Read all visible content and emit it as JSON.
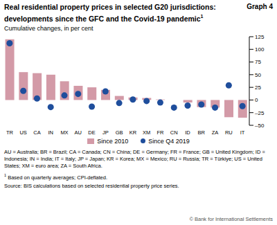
{
  "chart_data": {
    "type": "bar",
    "title": "Real residential property prices in selected G20 jurisdictions: developments since the GFC and the Covid-19 pandemic",
    "title_footnote_mark": "1",
    "graph_label": "Graph 4",
    "subtitle": "Cumulative changes, in per cent",
    "categories": [
      "TR",
      "US",
      "CA",
      "IN",
      "MX",
      "AU",
      "DE",
      "JP",
      "GB",
      "KR",
      "XM",
      "FR",
      "CN",
      "ID",
      "BR",
      "ZA",
      "RU",
      "IT"
    ],
    "series": [
      {
        "name": "Since 2010",
        "type": "bar",
        "color": "#d39aa7",
        "values": [
          120,
          55,
          53,
          50,
          37,
          28,
          25,
          20,
          8,
          5,
          4,
          1,
          0,
          -5,
          -14,
          -15,
          -34,
          -35
        ]
      },
      {
        "name": "Since Q4 2019",
        "type": "scatter",
        "color": "#1f4e9c",
        "marker": "circle",
        "values": [
          112,
          18,
          3,
          -14,
          9,
          12,
          -13,
          17,
          -6,
          1,
          -2,
          -5,
          -15,
          -11,
          -9,
          -15,
          29,
          -12
        ]
      }
    ],
    "ylim": [
      -50,
      125
    ],
    "yticks": [
      {
        "value": -50,
        "label": "–50"
      },
      {
        "value": -25,
        "label": "–25"
      },
      0,
      25,
      50,
      75,
      100,
      125
    ],
    "grid": false,
    "legend": "bottom",
    "abbreviations": "AU = Australia; BR = Brazil; CA = Canada; CN = China; DE = Germany; FR = France; GB = United Kingdom; ID = Indonesia; IN = India; IT = Italy; JP = Japan; KR = Korea; MX = Mexico; RU = Russia; TR = Türkiye; US = United States; XM = euro area; ZA = South Africa.",
    "footnotes": [
      {
        "mark": "1",
        "text": "Based on quarterly averages; CPI-deflated."
      }
    ],
    "source": "Source: BIS calculations based on selected residential property price series.",
    "copyright": "© Bank for International Settlements"
  }
}
